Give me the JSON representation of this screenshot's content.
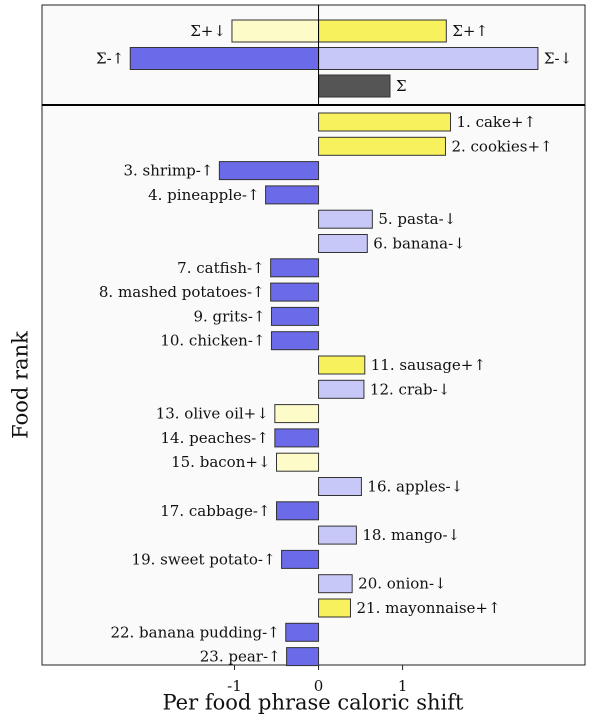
{
  "chart_data": {
    "type": "hbar",
    "xlabel": "Per food phrase caloric shift",
    "ylabel": "Food rank",
    "xlim": [
      -3.29,
      3.17
    ],
    "xticks": [
      -1,
      0,
      1
    ],
    "summary": {
      "rows": [
        {
          "categories": [
            "Σ+↓",
            "Σ+↑"
          ],
          "values": [
            -1.03,
            1.52
          ],
          "colors": [
            "#fdfbc8",
            "#f7f15e"
          ]
        },
        {
          "categories": [
            "Σ-↑",
            "Σ-↓"
          ],
          "values": [
            -2.24,
            2.61
          ],
          "colors": [
            "#6b6ae8",
            "#c8c8f8"
          ]
        },
        {
          "categories": [
            "Σ"
          ],
          "values": [
            0.85
          ],
          "colors": [
            "#555555"
          ]
        }
      ]
    },
    "categories": [
      "1. cake+↑",
      "2. cookies+↑",
      "3. shrimp-↑",
      "4. pineapple-↑",
      "5. pasta-↓",
      "6. banana-↓",
      "7. catfish-↑",
      "8. mashed potatoes-↑",
      "9. grits-↑",
      "10. chicken-↑",
      "11. sausage+↑",
      "12. crab-↓",
      "13. olive oil+↓",
      "14. peaches-↑",
      "15. bacon+↓",
      "16. apples-↓",
      "17. cabbage-↑",
      "18. mango-↓",
      "19. sweet potato-↑",
      "20. onion-↓",
      "21. mayonnaise+↑",
      "22. banana pudding-↑",
      "23. pear-↑"
    ],
    "values": [
      1.57,
      1.51,
      -1.18,
      -0.63,
      0.64,
      0.58,
      -0.57,
      -0.57,
      -0.56,
      -0.56,
      0.55,
      0.54,
      -0.52,
      -0.52,
      -0.5,
      0.51,
      -0.5,
      0.45,
      -0.44,
      0.4,
      0.38,
      -0.39,
      -0.38
    ],
    "colors": [
      "#f7f15e",
      "#f7f15e",
      "#6b6ae8",
      "#6b6ae8",
      "#c8c8f8",
      "#c8c8f8",
      "#6b6ae8",
      "#6b6ae8",
      "#6b6ae8",
      "#6b6ae8",
      "#f7f15e",
      "#c8c8f8",
      "#fdfbc8",
      "#6b6ae8",
      "#fdfbc8",
      "#c8c8f8",
      "#6b6ae8",
      "#c8c8f8",
      "#6b6ae8",
      "#c8c8f8",
      "#f7f15e",
      "#6b6ae8",
      "#6b6ae8"
    ]
  }
}
